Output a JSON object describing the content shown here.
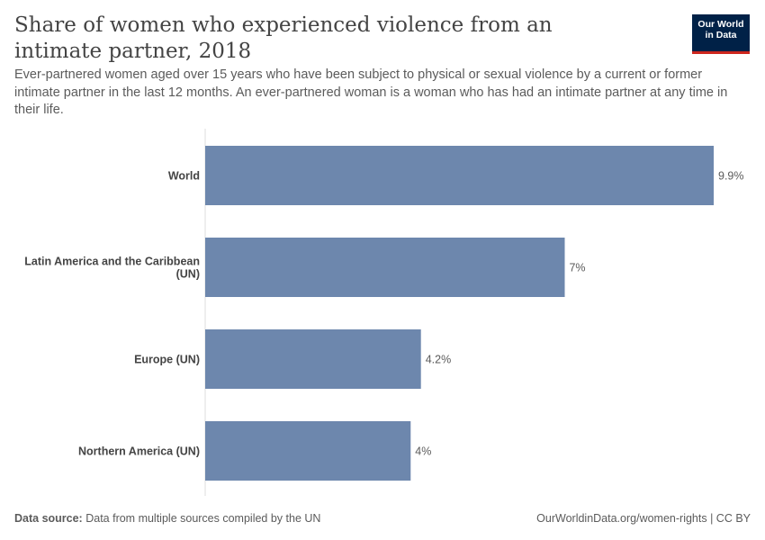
{
  "title": "Share of women who experienced violence from an intimate partner, 2018",
  "subtitle": "Ever-partnered women aged over 15 years who have been subject to physical or sexual violence by a current or former intimate partner in the last 12 months. An ever-partnered woman is a woman who has had an intimate partner at any time in their life.",
  "logo": {
    "line1": "Our World",
    "line2": "in Data",
    "bg_color": "#002147",
    "accent_color": "#ce261e"
  },
  "footer": {
    "source_label": "Data source:",
    "source_text": "Data from multiple sources compiled by the UN",
    "url_text": "OurWorldinData.org/women-rights | CC BY"
  },
  "chart_data": {
    "type": "bar",
    "orientation": "horizontal",
    "categories": [
      "World",
      "Latin America and the Caribbean (UN)",
      "Europe (UN)",
      "Northern America (UN)"
    ],
    "category_label_lines": [
      [
        "World"
      ],
      [
        "Latin America and the Caribbean",
        "(UN)"
      ],
      [
        "Europe (UN)"
      ],
      [
        "Northern America (UN)"
      ]
    ],
    "values": [
      9.9,
      7,
      4.2,
      4
    ],
    "value_labels": [
      "9.9%",
      "7%",
      "4.2%",
      "4%"
    ],
    "unit": "%",
    "xlim": [
      0,
      9.9
    ],
    "bar_color": "#6d87ad",
    "grid": false
  }
}
